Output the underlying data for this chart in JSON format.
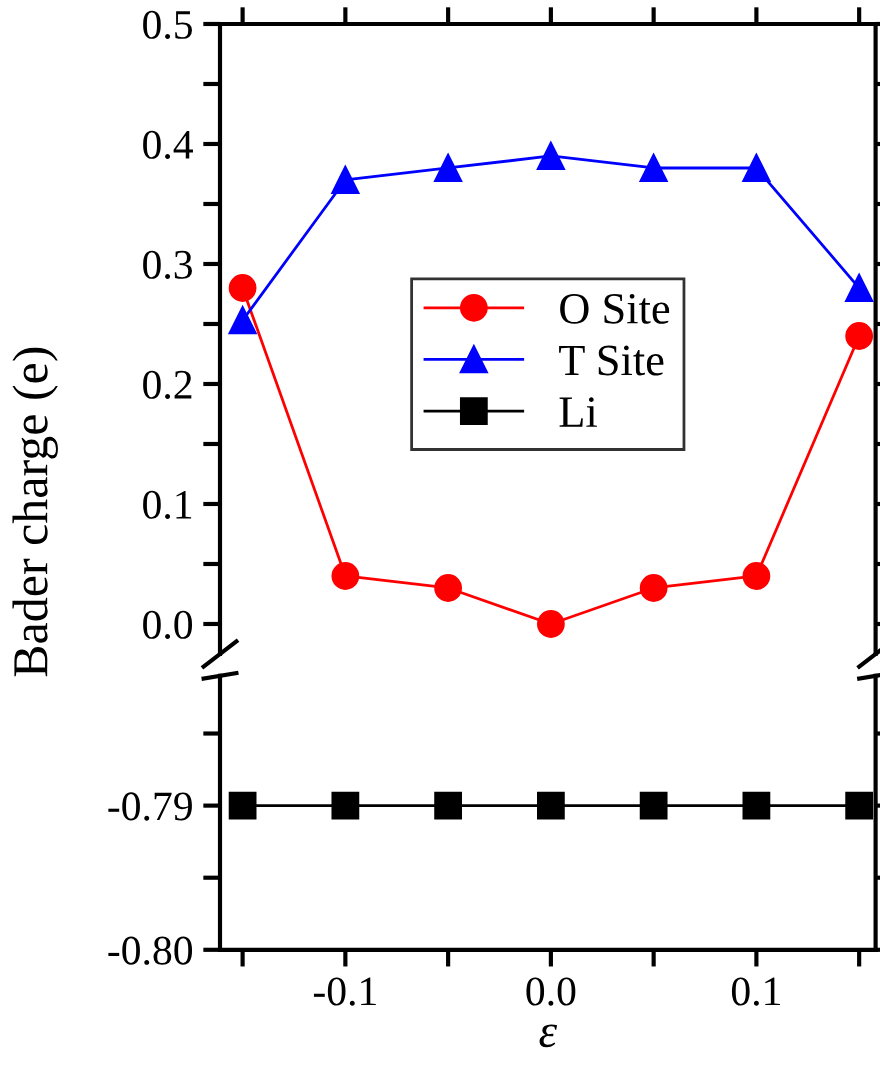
{
  "chart_data": [
    {
      "type": "line",
      "ylabel": "Bader charge (e)",
      "x": [
        -0.15,
        -0.1,
        -0.05,
        0.0,
        0.05,
        0.1,
        0.15
      ],
      "series": [
        {
          "name": "O Site",
          "color": "#ff0000",
          "marker": "circle",
          "values": [
            0.28,
            0.04,
            0.03,
            0.0,
            0.03,
            0.04,
            0.24
          ]
        },
        {
          "name": "T Site",
          "color": "#0000ff",
          "marker": "triangle",
          "values": [
            0.253,
            0.37,
            0.38,
            0.39,
            0.38,
            0.38,
            0.28
          ]
        }
      ],
      "xlim": [
        -0.161,
        0.158
      ],
      "xticks": [
        {
          "value": -0.15,
          "label": null
        },
        {
          "value": -0.1,
          "label": null
        },
        {
          "value": -0.05,
          "label": null
        },
        {
          "value": 0.0,
          "label": null
        },
        {
          "value": 0.05,
          "label": null
        },
        {
          "value": 0.1,
          "label": null
        },
        {
          "value": 0.15,
          "label": null
        }
      ],
      "ylim": [
        -0.025,
        0.5
      ],
      "yticks": [
        {
          "value": 0.0,
          "label": "0.0"
        },
        {
          "value": 0.05,
          "label": null
        },
        {
          "value": 0.1,
          "label": "0.1"
        },
        {
          "value": 0.15,
          "label": null
        },
        {
          "value": 0.2,
          "label": "0.2"
        },
        {
          "value": 0.25,
          "label": null
        },
        {
          "value": 0.3,
          "label": "0.3"
        },
        {
          "value": 0.35,
          "label": null
        },
        {
          "value": 0.4,
          "label": "0.4"
        },
        {
          "value": 0.45,
          "label": null
        },
        {
          "value": 0.5,
          "label": "0.5"
        }
      ],
      "tick_labels": "y",
      "legend": "center",
      "grid": false
    },
    {
      "type": "line",
      "xlabel": "ε",
      "x": [
        -0.15,
        -0.1,
        -0.05,
        0.0,
        0.05,
        0.1,
        0.15
      ],
      "series": [
        {
          "name": "Li",
          "color": "#000000",
          "marker": "square",
          "values": [
            -0.79,
            -0.79,
            -0.79,
            -0.79,
            -0.79,
            -0.79,
            -0.79
          ]
        }
      ],
      "xlim": [
        -0.161,
        0.158
      ],
      "xticks": [
        {
          "value": -0.15,
          "label": null
        },
        {
          "value": -0.1,
          "label": "-0.1"
        },
        {
          "value": -0.05,
          "label": null
        },
        {
          "value": 0.0,
          "label": "0.0"
        },
        {
          "value": 0.05,
          "label": null
        },
        {
          "value": 0.1,
          "label": "0.1"
        },
        {
          "value": 0.15,
          "label": null
        }
      ],
      "ylim": [
        -0.8,
        -0.781
      ],
      "yticks": [
        {
          "value": -0.8,
          "label": "-0.80"
        },
        {
          "value": -0.795,
          "label": null
        },
        {
          "value": -0.79,
          "label": "-0.79"
        },
        {
          "value": -0.785,
          "label": null
        }
      ],
      "grid": false
    }
  ]
}
